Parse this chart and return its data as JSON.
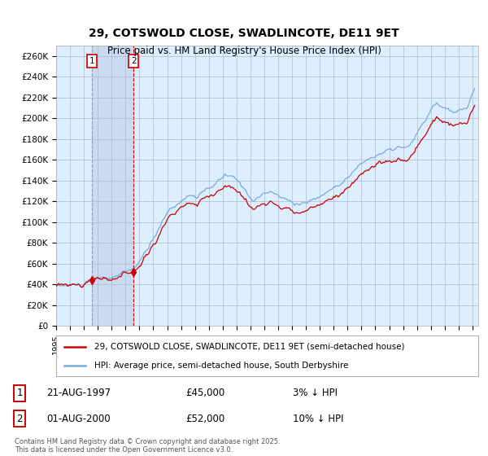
{
  "title": "29, COTSWOLD CLOSE, SWADLINCOTE, DE11 9ET",
  "subtitle": "Price paid vs. HM Land Registry's House Price Index (HPI)",
  "ylabel_ticks": [
    "£0",
    "£20K",
    "£40K",
    "£60K",
    "£80K",
    "£100K",
    "£120K",
    "£140K",
    "£160K",
    "£180K",
    "£200K",
    "£220K",
    "£240K",
    "£260K"
  ],
  "ytick_values": [
    0,
    20000,
    40000,
    60000,
    80000,
    100000,
    120000,
    140000,
    160000,
    180000,
    200000,
    220000,
    240000,
    260000
  ],
  "ylim": [
    0,
    270000
  ],
  "sale1_date": "21-AUG-1997",
  "sale1_price": 45000,
  "sale1_hpi_note": "3% ↓ HPI",
  "sale2_date": "01-AUG-2000",
  "sale2_price": 52000,
  "sale2_hpi_note": "10% ↓ HPI",
  "legend_property": "29, COTSWOLD CLOSE, SWADLINCOTE, DE11 9ET (semi-detached house)",
  "legend_hpi": "HPI: Average price, semi-detached house, South Derbyshire",
  "footer": "Contains HM Land Registry data © Crown copyright and database right 2025.\nThis data is licensed under the Open Government Licence v3.0.",
  "line_color_property": "#cc0000",
  "line_color_hpi": "#7aaadd",
  "bg_color": "#ddeeff",
  "grid_color": "#aabbcc",
  "vline1_color": "#999999",
  "vline2_color": "#cc0000",
  "shade_color": "#c8d8f0",
  "marker_color": "#cc0000",
  "xlim_start": [
    1995,
    1,
    1
  ],
  "xlim_end": [
    2025,
    6,
    1
  ],
  "x_years": [
    1995,
    1996,
    1997,
    1998,
    1999,
    2000,
    2001,
    2002,
    2003,
    2004,
    2005,
    2006,
    2007,
    2008,
    2009,
    2010,
    2011,
    2012,
    2013,
    2014,
    2015,
    2016,
    2017,
    2018,
    2019,
    2020,
    2021,
    2022,
    2023,
    2024,
    2025
  ]
}
